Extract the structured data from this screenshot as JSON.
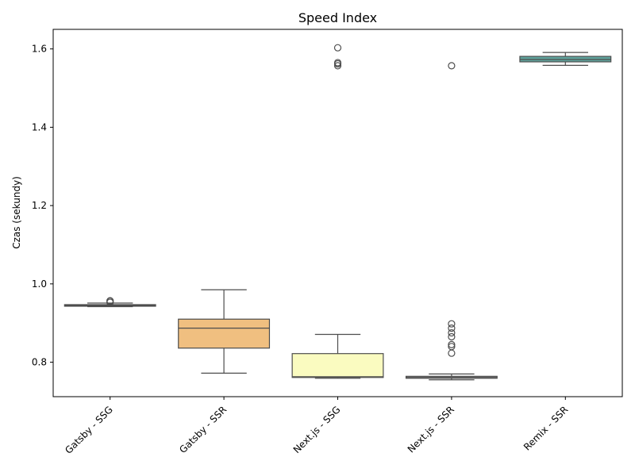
{
  "chart_data": {
    "type": "box",
    "title": "Speed Index",
    "xlabel": "",
    "ylabel": "Czas (sekundy)",
    "ylim": [
      0.712,
      1.65
    ],
    "yticks": [
      0.8,
      1.0,
      1.2,
      1.4,
      1.6
    ],
    "ytick_labels": [
      "0.8",
      "1.0",
      "1.2",
      "1.4",
      "1.6"
    ],
    "legend": "none",
    "grid": false,
    "categories": [
      "Gatsby - SSG",
      "Gatsby - SSR",
      "Next.js - SSG",
      "Next.js - SSR",
      "Remix - SSR"
    ],
    "boxes": [
      {
        "category": "Gatsby - SSG",
        "color": "#a25a50",
        "whisker_low": 0.942,
        "q1": 0.943,
        "median": 0.945,
        "q3": 0.947,
        "whisker_high": 0.951,
        "outliers": [
          0.953,
          0.956,
          0.957
        ]
      },
      {
        "category": "Gatsby - SSR",
        "color": "#f0bf80",
        "whisker_low": 0.772,
        "q1": 0.836,
        "median": 0.887,
        "q3": 0.91,
        "whisker_high": 0.985,
        "outliers": []
      },
      {
        "category": "Next.js - SSG",
        "color": "#fafbc0",
        "whisker_low": 0.759,
        "q1": 0.761,
        "median": 0.763,
        "q3": 0.822,
        "whisker_high": 0.871,
        "outliers": [
          1.557,
          1.562,
          1.565,
          1.603
        ]
      },
      {
        "category": "Next.js - SSR",
        "color": "#a9a9a9",
        "whisker_low": 0.755,
        "q1": 0.759,
        "median": 0.761,
        "q3": 0.764,
        "whisker_high": 0.77,
        "outliers": [
          0.823,
          0.84,
          0.845,
          0.865,
          0.875,
          0.887,
          0.898,
          1.557
        ]
      },
      {
        "category": "Remix - SSR",
        "color": "#5fa39c",
        "whisker_low": 1.558,
        "q1": 1.567,
        "median": 1.573,
        "q3": 1.581,
        "whisker_high": 1.591,
        "outliers": []
      }
    ]
  }
}
